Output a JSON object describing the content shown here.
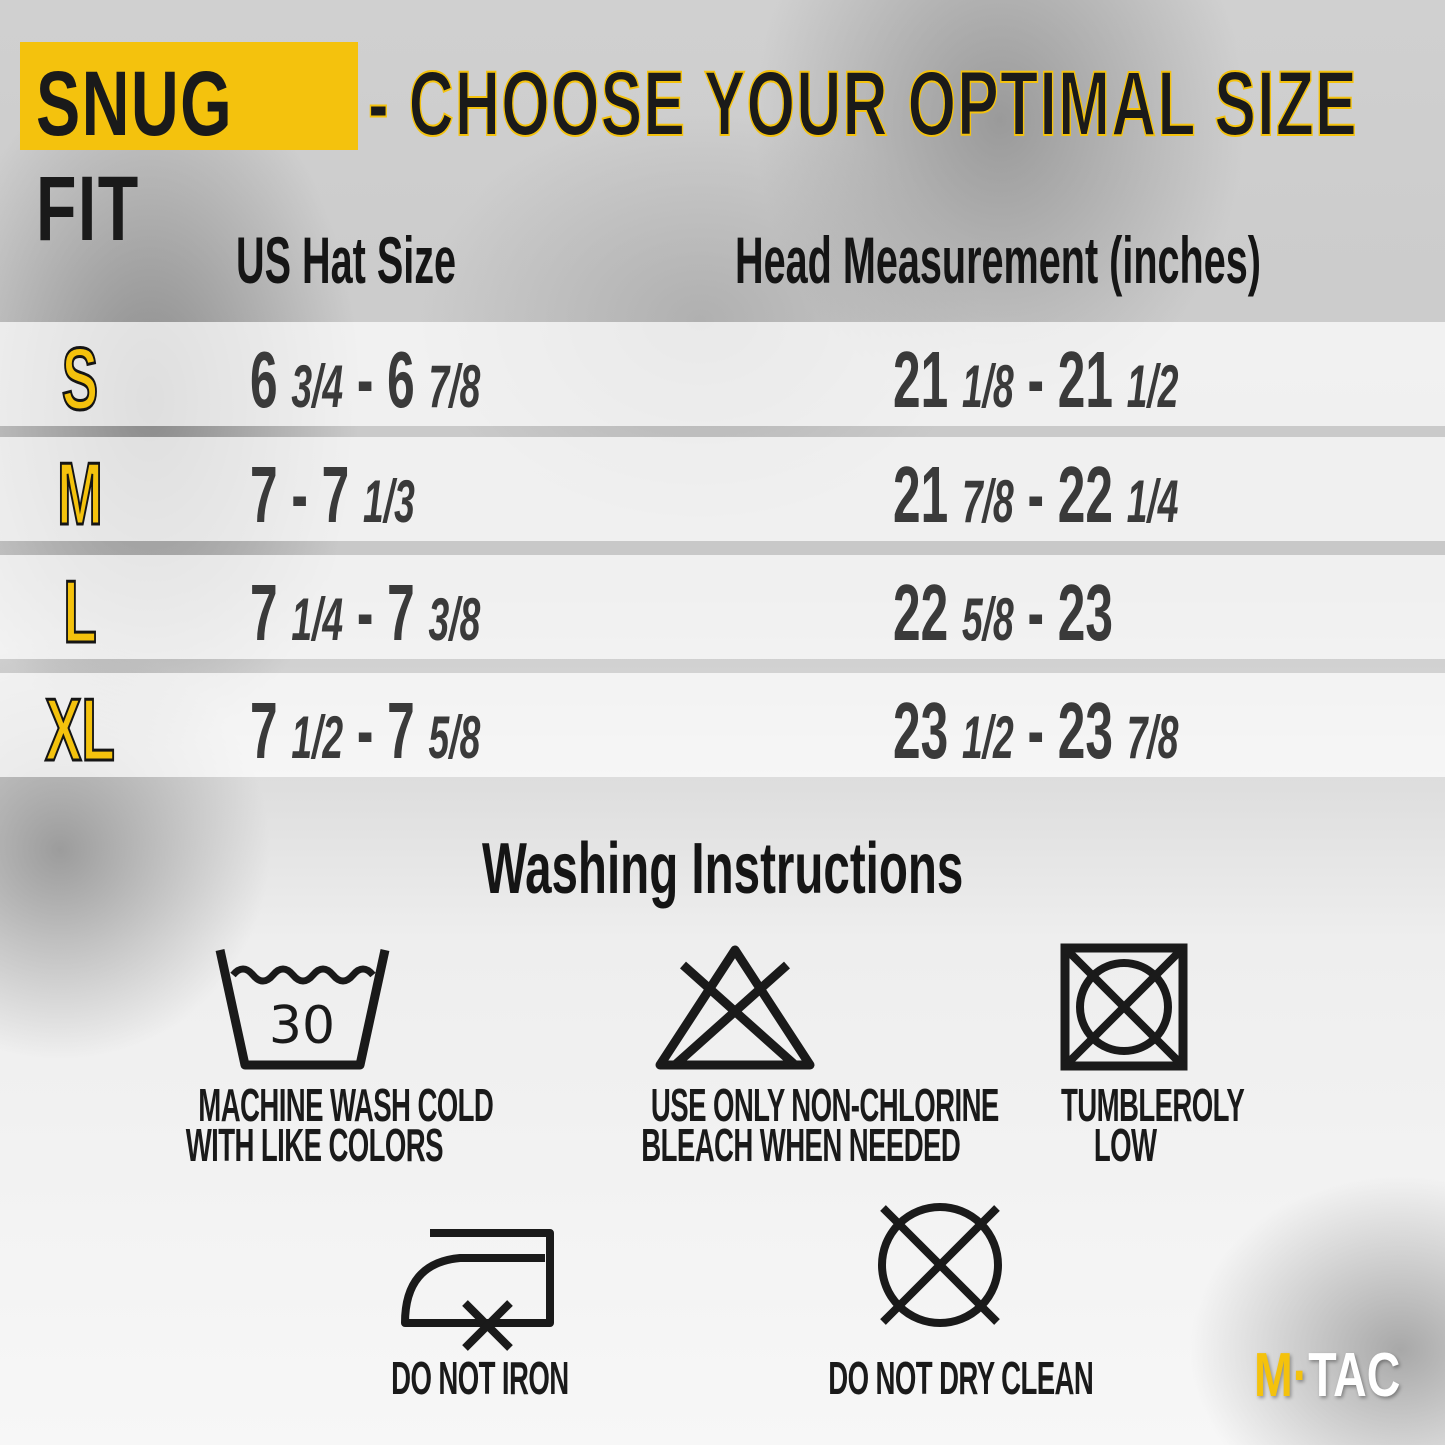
{
  "title": {
    "highlight": "SNUG FIT",
    "rest": "- CHOOSE YOUR OPTIMAL SIZE",
    "accent_color": "#f4c20d"
  },
  "table": {
    "headers": {
      "hat": "US Hat Size",
      "head": "Head Measurement (inches)"
    },
    "rows": [
      {
        "size": "S",
        "hat": [
          {
            "w": "6",
            "f": "3/4"
          },
          {
            "w": "6",
            "f": "7/8"
          }
        ],
        "head": [
          {
            "w": "21",
            "f": "1/8"
          },
          {
            "w": "21",
            "f": "1/2"
          }
        ]
      },
      {
        "size": "M",
        "hat": [
          {
            "w": "7",
            "f": ""
          },
          {
            "w": "7",
            "f": "1/3"
          }
        ],
        "head": [
          {
            "w": "21",
            "f": "7/8"
          },
          {
            "w": "22",
            "f": "1/4"
          }
        ]
      },
      {
        "size": "L",
        "hat": [
          {
            "w": "7",
            "f": "1/4"
          },
          {
            "w": "7",
            "f": "3/8"
          }
        ],
        "head": [
          {
            "w": "22",
            "f": "5/8"
          },
          {
            "w": "23",
            "f": ""
          }
        ]
      },
      {
        "size": "XL",
        "hat": [
          {
            "w": "7",
            "f": "1/2"
          },
          {
            "w": "7",
            "f": "5/8"
          }
        ],
        "head": [
          {
            "w": "23",
            "f": "1/2"
          },
          {
            "w": "23",
            "f": "7/8"
          }
        ]
      }
    ]
  },
  "washing": {
    "title": "Washing Instructions",
    "items": [
      {
        "icon": "wash-30-icon",
        "temp": "30",
        "lines": [
          "MACHINE WASH COLD",
          "WITH LIKE COLORS"
        ]
      },
      {
        "icon": "no-chlorine-bleach-icon",
        "lines": [
          "USE ONLY NON-CHLORINE",
          "BLEACH WHEN NEEDED"
        ]
      },
      {
        "icon": "tumble-dry-icon",
        "lines": [
          "TUMBLEROLY",
          "LOW"
        ]
      },
      {
        "icon": "do-not-iron-icon",
        "lines": [
          "DO NOT IRON"
        ]
      },
      {
        "icon": "do-not-dry-clean-icon",
        "lines": [
          "DO NOT DRY CLEAN"
        ]
      }
    ]
  },
  "logo": {
    "m": "M",
    "dot": "·",
    "tac": "TAC"
  }
}
